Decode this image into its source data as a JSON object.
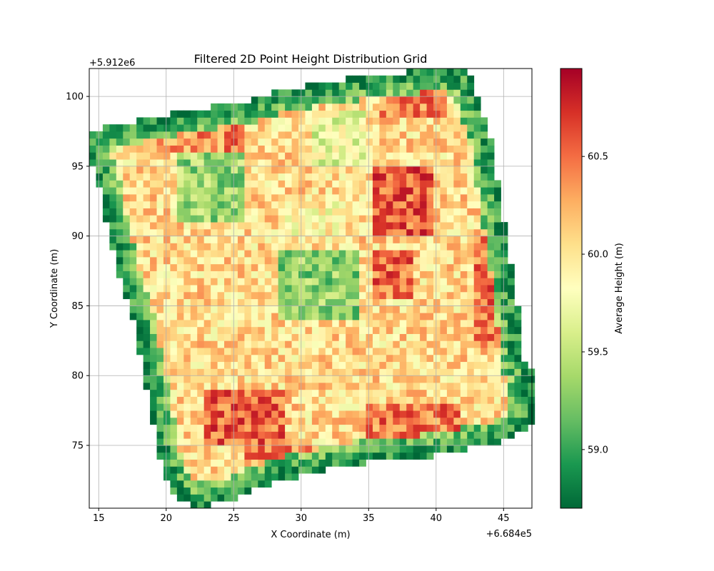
{
  "chart_data": {
    "type": "heatmap",
    "title": "Filtered 2D Point Height Distribution Grid",
    "xlabel": "X Coordinate (m)",
    "ylabel": "Y Coordinate (m)",
    "x_offset_label": "+6.684e5",
    "y_offset_label": "+5.912e6",
    "xlim": [
      14.3,
      47.1
    ],
    "ylim": [
      70.5,
      102.0
    ],
    "x_ticks": [
      15,
      20,
      25,
      30,
      35,
      40,
      45
    ],
    "y_ticks": [
      75,
      80,
      85,
      90,
      95,
      100
    ],
    "grid": true,
    "cell_size": 0.5,
    "colormap": "RdYlGn_r",
    "colorbar": {
      "label": "Average Height (m)",
      "range": [
        58.7,
        60.95
      ],
      "ticks": [
        59.0,
        59.5,
        60.0,
        60.5
      ]
    },
    "polygon": [
      [
        14.3,
        97.5
      ],
      [
        17.5,
        98.2
      ],
      [
        20.5,
        98.8
      ],
      [
        26.0,
        99.7
      ],
      [
        28.5,
        100.5
      ],
      [
        33.0,
        101.2
      ],
      [
        39.0,
        101.9
      ],
      [
        42.5,
        101.8
      ],
      [
        44.0,
        97.3
      ],
      [
        45.3,
        89.5
      ],
      [
        46.0,
        85.5
      ],
      [
        46.4,
        81.0
      ],
      [
        47.1,
        80.5
      ],
      [
        47.1,
        76.5
      ],
      [
        45.0,
        75.3
      ],
      [
        40.5,
        74.3
      ],
      [
        33.5,
        73.6
      ],
      [
        28.0,
        72.4
      ],
      [
        25.0,
        71.2
      ],
      [
        22.0,
        70.5
      ],
      [
        20.5,
        71.5
      ],
      [
        19.5,
        74.0
      ],
      [
        18.5,
        79.5
      ],
      [
        17.5,
        84.0
      ],
      [
        16.0,
        89.0
      ],
      [
        15.0,
        93.5
      ],
      [
        14.3,
        95.5
      ]
    ],
    "regions": [
      {
        "x": [
          21,
          26
        ],
        "y": [
          91,
          96
        ],
        "mean": 59.35
      },
      {
        "x": [
          28.5,
          34.5
        ],
        "y": [
          84,
          89
        ],
        "mean": 59.3
      },
      {
        "x": [
          35.5,
          40
        ],
        "y": [
          90,
          95
        ],
        "mean": 60.55
      },
      {
        "x": [
          35.5,
          38.5
        ],
        "y": [
          85.5,
          89
        ],
        "mean": 60.5
      },
      {
        "x": [
          23,
          29
        ],
        "y": [
          75,
          79
        ],
        "mean": 60.55
      },
      {
        "x": [
          19.5,
          26
        ],
        "y": [
          96,
          98
        ],
        "mean": 60.4
      },
      {
        "x": [
          36,
          41
        ],
        "y": [
          98.5,
          101
        ],
        "mean": 60.45
      },
      {
        "x": [
          26,
          34
        ],
        "y": [
          72,
          75
        ],
        "mean": 60.4
      },
      {
        "x": [
          43,
          45.5
        ],
        "y": [
          82,
          90
        ],
        "mean": 60.5
      },
      {
        "x": [
          35,
          42
        ],
        "y": [
          74,
          78
        ],
        "mean": 60.45
      },
      {
        "x": [
          31,
          35
        ],
        "y": [
          95,
          99
        ],
        "mean": 59.7
      },
      {
        "x": [
          29,
          33
        ],
        "y": [
          90,
          93
        ],
        "mean": 59.9
      }
    ]
  }
}
